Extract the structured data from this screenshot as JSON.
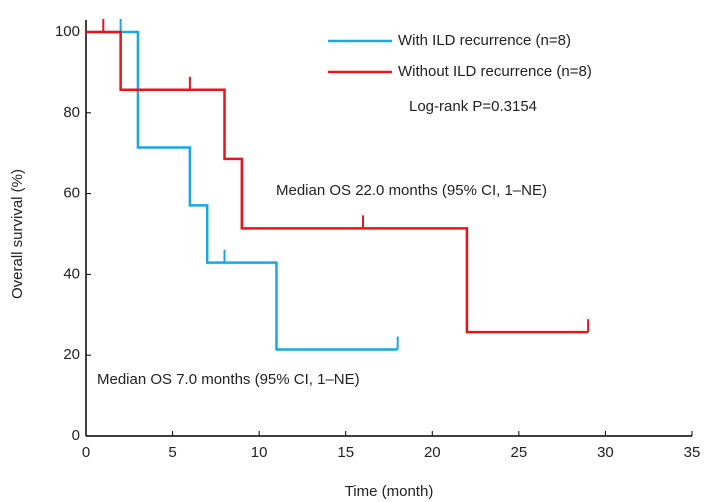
{
  "chart_data": {
    "type": "step",
    "x_label": "Time (month)",
    "y_label": "Overall survival  (%)",
    "xlim": [
      0,
      35
    ],
    "xticks": [
      0,
      5,
      10,
      15,
      20,
      25,
      30,
      35
    ],
    "ylim": [
      0,
      100
    ],
    "yticks": [
      0,
      20,
      40,
      60,
      80,
      100
    ],
    "grid": false,
    "legend": "top-right",
    "annotations": [
      "Log-rank P=0.3154",
      "Median OS 22.0 months (95% CI, 1–NE)",
      "Median OS 7.0 months (95% CI, 1–NE)"
    ],
    "series": [
      {
        "name": "With ILD recurrence (n=8)",
        "color": "#1aa7e0",
        "x": [
          0,
          3,
          6,
          7,
          11,
          18
        ],
        "values": [
          100,
          71.4,
          57.1,
          42.9,
          21.4,
          21.4
        ],
        "censor_x": [
          2,
          8,
          18
        ],
        "censor_values": [
          100,
          42.9,
          21.4
        ]
      },
      {
        "name": "Without ILD recurrence (n=8)",
        "color": "#e8141c",
        "x": [
          0,
          2,
          8,
          9,
          22,
          29
        ],
        "values": [
          100,
          85.7,
          68.6,
          51.4,
          25.7,
          25.7
        ],
        "censor_x": [
          1,
          6,
          16,
          29
        ],
        "censor_values": [
          100,
          85.7,
          51.4,
          25.7
        ]
      }
    ]
  }
}
